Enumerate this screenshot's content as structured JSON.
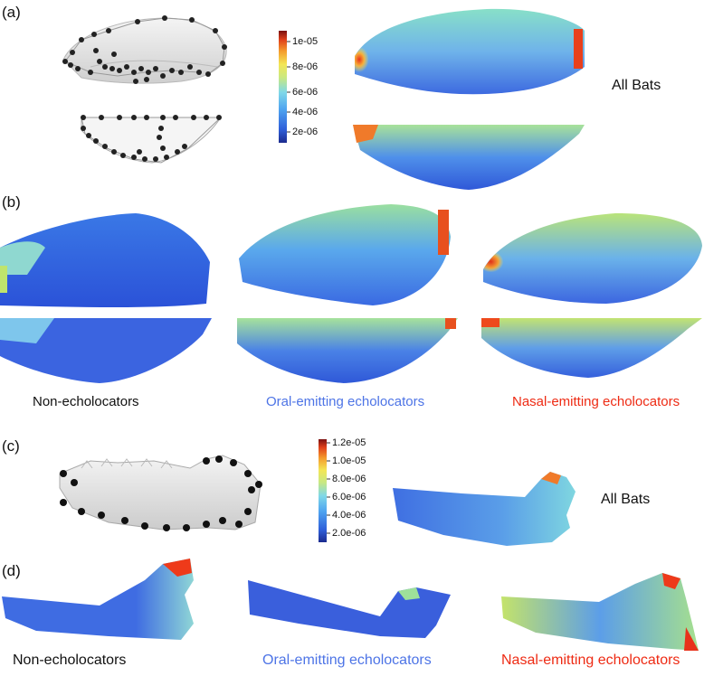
{
  "panels": {
    "a": {
      "label": "(a)",
      "group": "All Bats"
    },
    "b": {
      "label": "(b)"
    },
    "c": {
      "label": "(c)",
      "group": "All Bats"
    },
    "d": {
      "label": "(d)"
    }
  },
  "groups": {
    "non": "Non-echolocators",
    "oral": "Oral-emitting echolocators",
    "nasal": "Nasal-emitting echolocators"
  },
  "colors": {
    "oral": "#4d74e6",
    "nasal": "#ee2b14",
    "black": "#111111"
  },
  "colorbar_a": {
    "ticks": [
      "1e-05",
      "8e-06",
      "6e-06",
      "4e-06",
      "2e-06"
    ]
  },
  "colorbar_c": {
    "ticks": [
      "1.2e-05",
      "1.0e-05",
      "8.0e-06",
      "6.0e-06",
      "4.0e-06",
      "2.0e-06"
    ]
  }
}
